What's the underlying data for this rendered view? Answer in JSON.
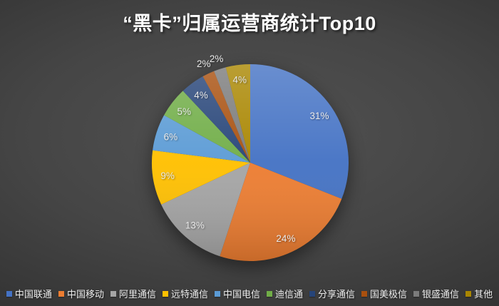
{
  "chart_data": {
    "type": "pie",
    "title": "“黑卡”归属运营商统计Top10",
    "legend_position": "bottom",
    "start_angle_deg": 0,
    "direction": "clockwise",
    "data_labels": "percent",
    "slices": [
      {
        "label": "中国联通",
        "value": 31,
        "pct_label": "31%",
        "color": "#4472C4",
        "label_inside": true
      },
      {
        "label": "中国移动",
        "value": 24,
        "pct_label": "24%",
        "color": "#ED7D31",
        "label_inside": true
      },
      {
        "label": "阿里通信",
        "value": 13,
        "pct_label": "13%",
        "color": "#A5A5A5",
        "label_inside": true
      },
      {
        "label": "远特通信",
        "value": 9,
        "pct_label": "9%",
        "color": "#FFC000",
        "label_inside": true
      },
      {
        "label": "中国电信",
        "value": 6,
        "pct_label": "6%",
        "color": "#5B9BD5",
        "label_inside": true
      },
      {
        "label": "迪信通",
        "value": 5,
        "pct_label": "5%",
        "color": "#70AD47",
        "label_inside": true
      },
      {
        "label": "分享通信",
        "value": 4,
        "pct_label": "4%",
        "color": "#264478",
        "label_inside": true
      },
      {
        "label": "国美极信",
        "value": 2,
        "pct_label": "2%",
        "color": "#A8500F",
        "label_inside": false
      },
      {
        "label": "银盛通信",
        "value": 2,
        "pct_label": "2%",
        "color": "#7B7B7B",
        "label_inside": false
      },
      {
        "label": "其他",
        "value": 4,
        "pct_label": "4%",
        "color": "#A98600",
        "label_inside": true
      }
    ]
  }
}
